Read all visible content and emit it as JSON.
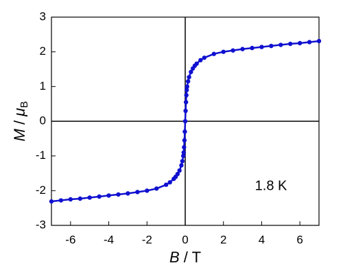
{
  "chart_data": {
    "type": "line",
    "xlabel": [
      "B",
      " / T"
    ],
    "ylabel": [
      "M",
      " / ",
      "μ",
      "B"
    ],
    "annotation": "1.8 K",
    "x": [
      -7,
      -6.5,
      -6,
      -5.5,
      -5,
      -4.5,
      -4,
      -3.5,
      -3,
      -2.5,
      -2,
      -1.5,
      -1,
      -0.8,
      -0.6,
      -0.5,
      -0.4,
      -0.3,
      -0.2,
      -0.15,
      -0.1,
      -0.08,
      -0.06,
      -0.04,
      -0.02,
      0,
      0.02,
      0.04,
      0.06,
      0.08,
      0.1,
      0.15,
      0.2,
      0.3,
      0.4,
      0.5,
      0.6,
      0.8,
      1,
      1.5,
      2,
      2.5,
      3,
      3.5,
      4,
      4.5,
      5,
      5.5,
      6,
      6.5,
      7
    ],
    "series": [
      {
        "name": "M",
        "color": "#1010d0",
        "values": [
          -2.31,
          -2.28,
          -2.25,
          -2.23,
          -2.2,
          -2.17,
          -2.14,
          -2.11,
          -2.08,
          -2.04,
          -2.0,
          -1.94,
          -1.83,
          -1.76,
          -1.66,
          -1.6,
          -1.52,
          -1.42,
          -1.27,
          -1.15,
          -1.0,
          -0.9,
          -0.75,
          -0.55,
          -0.3,
          0,
          0.3,
          0.55,
          0.75,
          0.9,
          1.0,
          1.15,
          1.27,
          1.42,
          1.52,
          1.6,
          1.66,
          1.76,
          1.83,
          1.94,
          2.0,
          2.04,
          2.08,
          2.11,
          2.14,
          2.17,
          2.2,
          2.23,
          2.25,
          2.28,
          2.31
        ]
      }
    ],
    "xlim": [
      -7,
      7
    ],
    "ylim": [
      -3,
      3
    ],
    "xticks": [
      -6,
      -4,
      -2,
      0,
      2,
      4,
      6
    ],
    "yticks": [
      -3,
      -2,
      -1,
      0,
      1,
      2,
      3
    ]
  }
}
